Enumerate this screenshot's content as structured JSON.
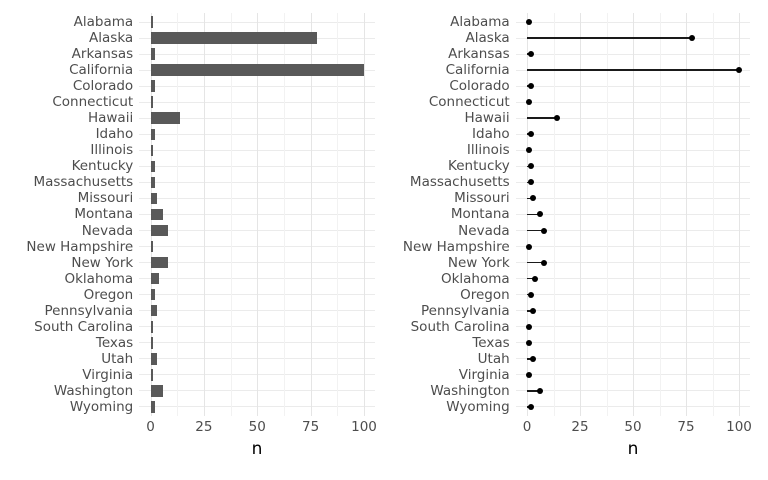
{
  "chart_data": [
    {
      "type": "bar",
      "panel": "left",
      "title": "",
      "xlabel": "n",
      "ylabel": "",
      "legend": "none",
      "grid": true,
      "orientation": "horizontal",
      "categories": [
        "Alabama",
        "Alaska",
        "Arkansas",
        "California",
        "Colorado",
        "Connecticut",
        "Hawaii",
        "Idaho",
        "Illinois",
        "Kentucky",
        "Massachusetts",
        "Missouri",
        "Montana",
        "Nevada",
        "New Hampshire",
        "New York",
        "Oklahoma",
        "Oregon",
        "Pennsylvania",
        "South Carolina",
        "Texas",
        "Utah",
        "Virginia",
        "Washington",
        "Wyoming"
      ],
      "values": [
        1,
        78,
        2,
        100,
        2,
        1,
        14,
        2,
        1,
        2,
        2,
        3,
        6,
        8,
        1,
        8,
        4,
        2,
        3,
        1,
        1,
        3,
        1,
        6,
        2
      ],
      "x_ticks": [
        "0",
        "25",
        "50",
        "75",
        "100"
      ],
      "x_tick_values": [
        0,
        25,
        50,
        75,
        100
      ],
      "x_minor_tick_values": [
        12.5,
        37.5,
        62.5,
        87.5
      ],
      "xlim": [
        -5.4,
        105.4
      ],
      "style": {
        "bar_fill": "#595959",
        "axis_text": "#4D4D4D",
        "axis_title": "#000000",
        "grid_major": "#E5E5E5",
        "grid_minor": "#F2F2F2",
        "grid_row": "#EBEBEB",
        "background": "#FFFFFF"
      }
    },
    {
      "type": "lollipop",
      "panel": "right",
      "title": "",
      "xlabel": "n",
      "ylabel": "",
      "legend": "none",
      "grid": true,
      "orientation": "horizontal",
      "categories": [
        "Alabama",
        "Alaska",
        "Arkansas",
        "California",
        "Colorado",
        "Connecticut",
        "Hawaii",
        "Idaho",
        "Illinois",
        "Kentucky",
        "Massachusetts",
        "Missouri",
        "Montana",
        "Nevada",
        "New Hampshire",
        "New York",
        "Oklahoma",
        "Oregon",
        "Pennsylvania",
        "South Carolina",
        "Texas",
        "Utah",
        "Virginia",
        "Washington",
        "Wyoming"
      ],
      "values": [
        1,
        78,
        2,
        100,
        2,
        1,
        14,
        2,
        1,
        2,
        2,
        3,
        6,
        8,
        1,
        8,
        4,
        2,
        3,
        1,
        1,
        3,
        1,
        6,
        2
      ],
      "x_ticks": [
        "0",
        "25",
        "50",
        "75",
        "100"
      ],
      "x_tick_values": [
        0,
        25,
        50,
        75,
        100
      ],
      "x_minor_tick_values": [
        12.5,
        37.5,
        62.5,
        87.5
      ],
      "xlim": [
        -5.4,
        105.4
      ],
      "style": {
        "dot_fill": "#000000",
        "stick_stroke": "#1A1A1A",
        "axis_text": "#4D4D4D",
        "axis_title": "#000000",
        "grid_major": "#E5E5E5",
        "grid_minor": "#F2F2F2",
        "grid_row": "#EBEBEB",
        "background": "#FFFFFF"
      }
    }
  ]
}
